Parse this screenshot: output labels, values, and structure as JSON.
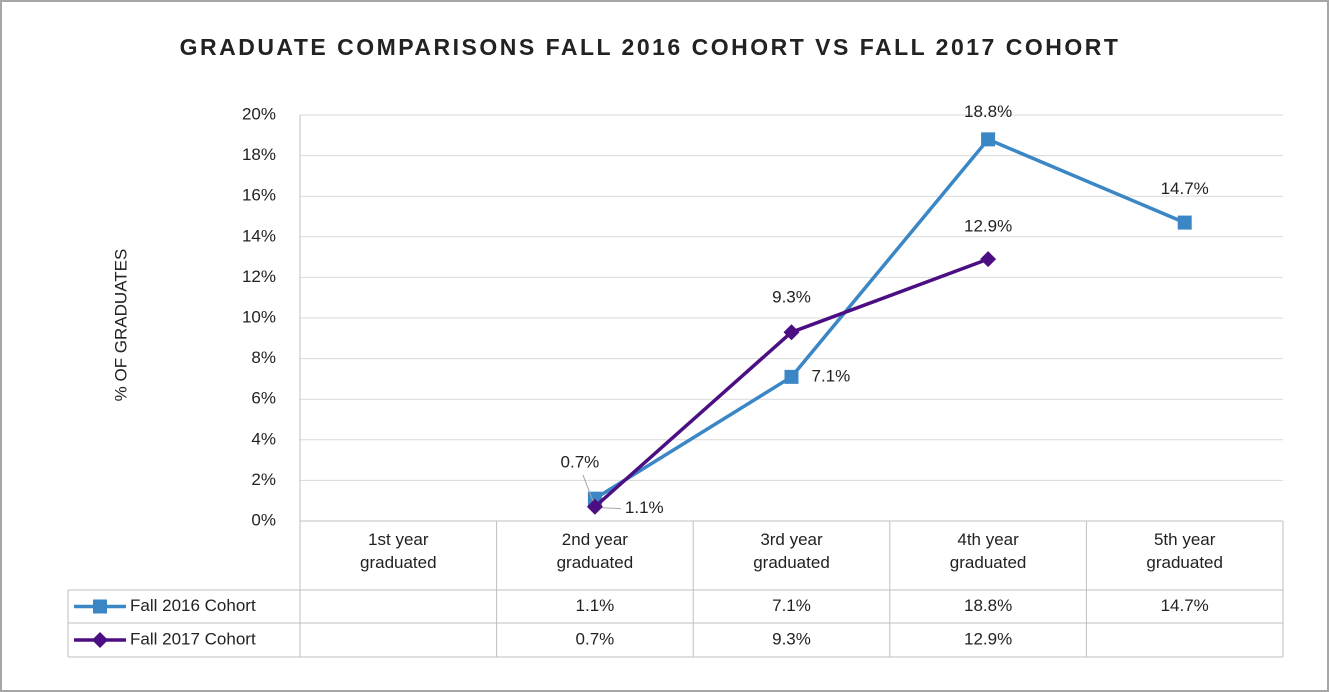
{
  "chart_data": {
    "type": "line",
    "title": "GRADUATE COMPARISONS FALL 2016 COHORT VS FALL 2017 COHORT",
    "y_label": "% OF GRADUATES",
    "categories": [
      "1st year graduated",
      "2nd year graduated",
      "3rd year graduated",
      "4th year graduated",
      "5th year graduated"
    ],
    "series": [
      {
        "name": "Fall 2016 Cohort",
        "color": "#3b87c6",
        "marker": "square",
        "values": [
          null,
          1.1,
          7.1,
          18.8,
          14.7
        ],
        "value_labels": [
          null,
          "1.1%",
          "7.1%",
          "18.8%",
          "14.7%"
        ]
      },
      {
        "name": "Fall 2017 Cohort",
        "color": "#4b0f83",
        "marker": "diamond",
        "values": [
          null,
          0.7,
          9.3,
          12.9,
          null
        ],
        "value_labels": [
          null,
          "0.7%",
          "9.3%",
          "12.9%",
          null
        ]
      }
    ],
    "ylim": [
      0,
      20
    ],
    "yticks": [
      {
        "value": 0,
        "label": "0%"
      },
      {
        "value": 2,
        "label": "2%"
      },
      {
        "value": 4,
        "label": "4%"
      },
      {
        "value": 6,
        "label": "6%"
      },
      {
        "value": 8,
        "label": "8%"
      },
      {
        "value": 10,
        "label": "10%"
      },
      {
        "value": 12,
        "label": "12%"
      },
      {
        "value": 14,
        "label": "14%"
      },
      {
        "value": 16,
        "label": "16%"
      },
      {
        "value": 18,
        "label": "18%"
      },
      {
        "value": 20,
        "label": "20%"
      }
    ],
    "grid": true,
    "data_table": true
  }
}
